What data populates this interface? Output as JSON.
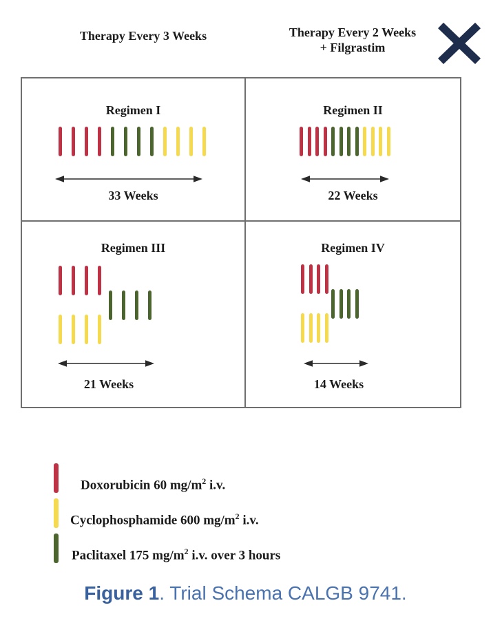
{
  "header": {
    "left_arm": "Therapy Every 3 Weeks",
    "right_arm_line1": "Therapy Every 2 Weeks",
    "right_arm_line2": "+ Filgrastim"
  },
  "colors": {
    "doxorubicin": "#BE3245",
    "cyclophosphamide": "#F5D94F",
    "paclitaxel": "#4C652F",
    "close_icon": "#1F2D4D",
    "caption": "#4A72AE",
    "caption_bold": "#39619E",
    "grid_line": "#6F6F6F",
    "arrow": "#2A2A2A"
  },
  "regimens": [
    {
      "title": "Regimen I",
      "duration": "33 Weeks",
      "doses": [
        {
          "drug": "doxorubicin",
          "count": 4
        },
        {
          "drug": "paclitaxel",
          "count": 4
        },
        {
          "drug": "cyclophosphamide",
          "count": 4
        }
      ]
    },
    {
      "title": "Regimen II",
      "duration": "22 Weeks",
      "doses": [
        {
          "drug": "doxorubicin",
          "count": 4
        },
        {
          "drug": "paclitaxel",
          "count": 4
        },
        {
          "drug": "cyclophosphamide",
          "count": 4
        }
      ]
    },
    {
      "title": "Regimen III",
      "duration": "21 Weeks",
      "doses": [
        {
          "drug": "doxorubicin",
          "count": 4
        },
        {
          "drug": "paclitaxel",
          "count": 4
        },
        {
          "drug": "cyclophosphamide",
          "count": 4
        }
      ]
    },
    {
      "title": "Regimen IV",
      "duration": "14 Weeks",
      "doses": [
        {
          "drug": "doxorubicin",
          "count": 4
        },
        {
          "drug": "paclitaxel",
          "count": 4
        },
        {
          "drug": "cyclophosphamide",
          "count": 4
        }
      ]
    }
  ],
  "legend": [
    {
      "drug": "doxorubicin",
      "label_pre": "Doxorubicin 60 mg/m",
      "label_sup": "2",
      "label_post": " i.v."
    },
    {
      "drug": "cyclophosphamide",
      "label_pre": "Cyclophosphamide 600 mg/m",
      "label_sup": "2",
      "label_post": " i.v."
    },
    {
      "drug": "paclitaxel",
      "label_pre": "Paclitaxel 175 mg/m",
      "label_sup": "2",
      "label_post": " i.v. over 3 hours"
    }
  ],
  "caption": {
    "figure_label": "Figure 1",
    "rest": ". Trial Schema CALGB 9741."
  }
}
